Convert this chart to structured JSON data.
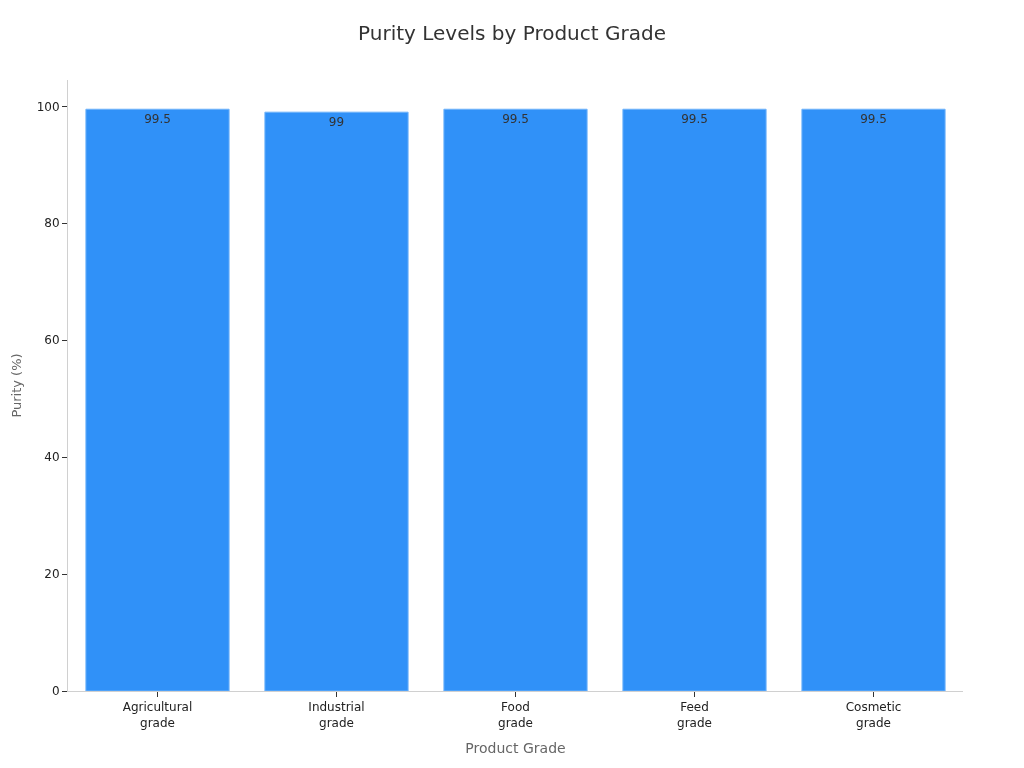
{
  "chart_data": {
    "type": "bar",
    "title": "Purity Levels by Product Grade",
    "xlabel": "Product Grade",
    "ylabel": "Purity (%)",
    "categories": [
      "Agricultural\ngrade",
      "Industrial\ngrade",
      "Food\ngrade",
      "Feed\ngrade",
      "Cosmetic\ngrade"
    ],
    "values": [
      99.5,
      99,
      99.5,
      99.5,
      99.5
    ],
    "color": "#3091f8",
    "ylim": [
      0,
      104.5
    ],
    "yticks": [
      0,
      20,
      40,
      60,
      80,
      100
    ],
    "grid": false,
    "legend": false,
    "data_labels": true
  }
}
